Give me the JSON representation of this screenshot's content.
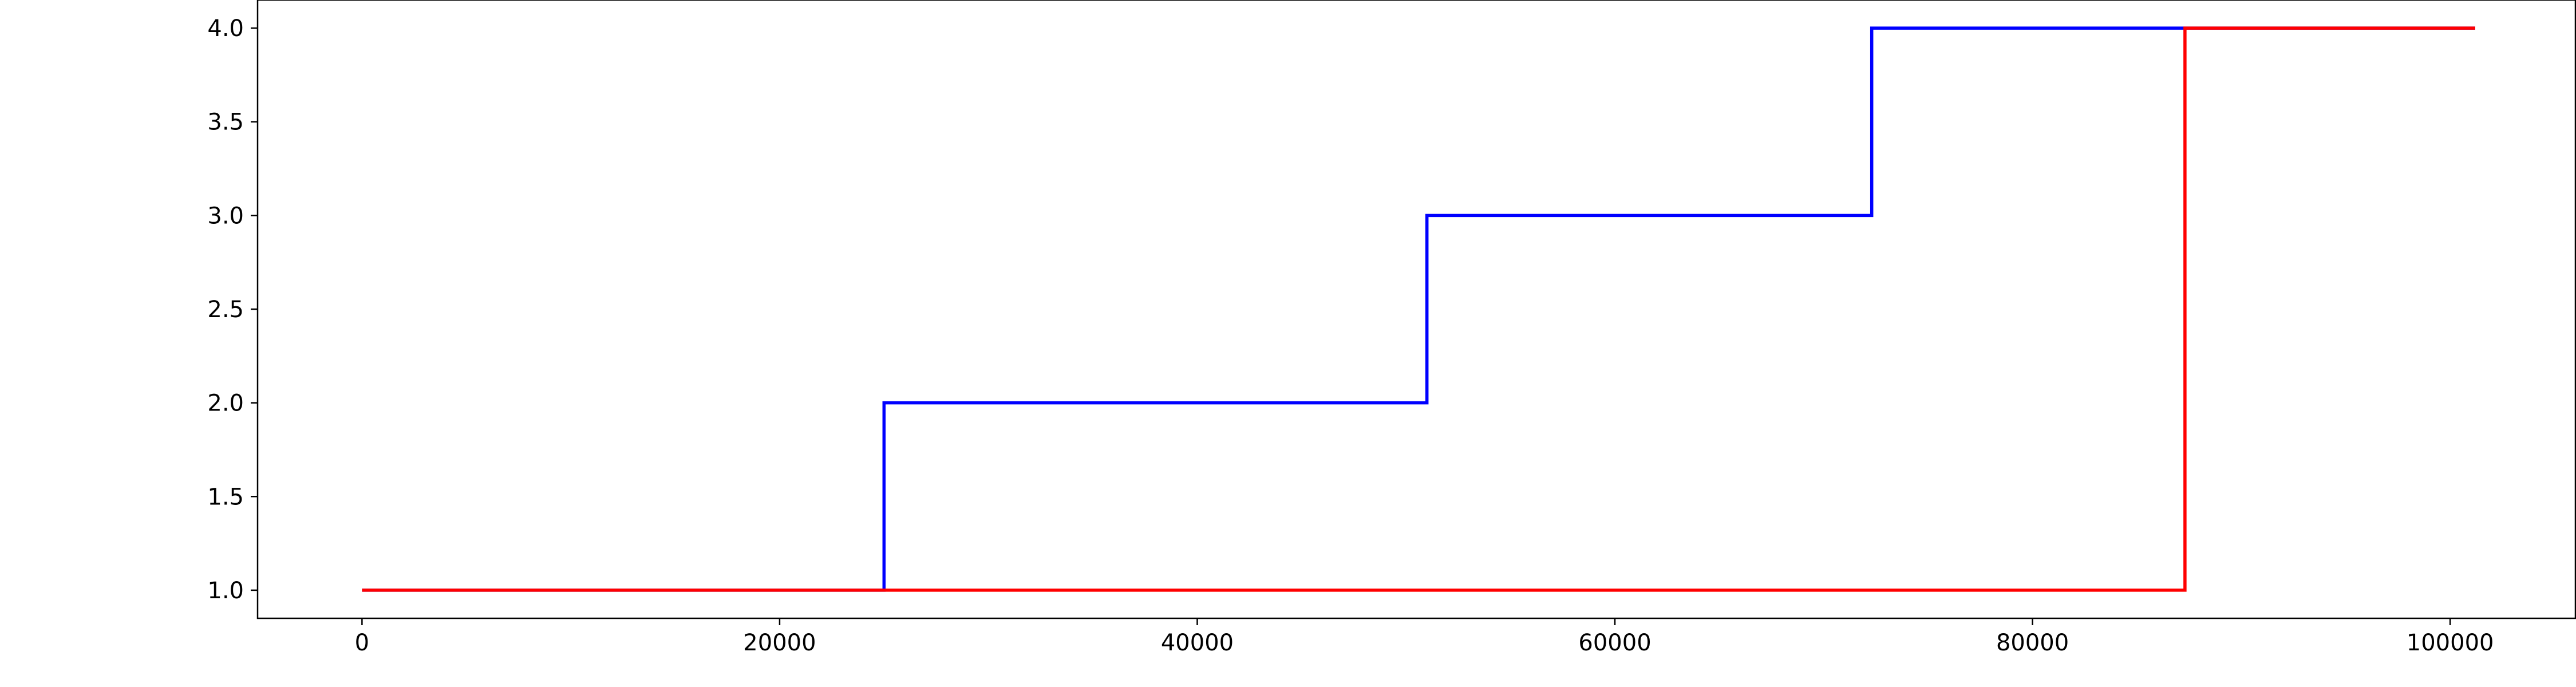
{
  "chart_data": {
    "type": "line",
    "step": true,
    "title": "",
    "xlabel": "",
    "ylabel": "",
    "xlim": [
      -5000,
      106000
    ],
    "ylim": [
      0.85,
      4.15
    ],
    "xticks": [
      0,
      20000,
      40000,
      60000,
      80000,
      100000
    ],
    "xtick_labels": [
      "0",
      "20000",
      "40000",
      "60000",
      "80000",
      "100000"
    ],
    "yticks": [
      1.0,
      1.5,
      2.0,
      2.5,
      3.0,
      3.5,
      4.0
    ],
    "ytick_labels": [
      "1.0",
      "1.5",
      "2.0",
      "2.5",
      "3.0",
      "3.5",
      "4.0"
    ],
    "grid": false,
    "legend": false,
    "series": [
      {
        "color": "#0000ff",
        "x": [
          0,
          25000,
          25000,
          51000,
          51000,
          72300,
          72300,
          87300,
          87300,
          101200
        ],
        "y": [
          1,
          1,
          2,
          2,
          3,
          3,
          4,
          4,
          4,
          4
        ]
      },
      {
        "color": "#ff0000",
        "x": [
          0,
          87300,
          87300,
          101200
        ],
        "y": [
          1,
          1,
          4,
          4
        ]
      }
    ]
  }
}
